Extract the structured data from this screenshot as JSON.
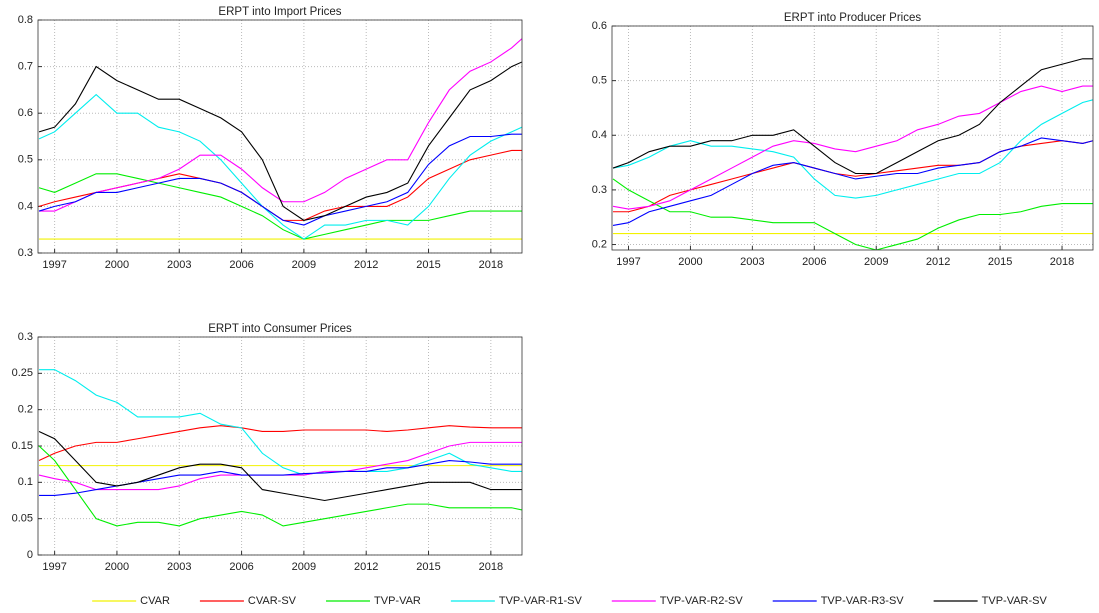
{
  "chart_data": [
    {
      "type": "line",
      "title": "ERPT into Import Prices",
      "xlim": [
        1996.2,
        2019.5
      ],
      "xticks": [
        1997,
        2000,
        2003,
        2006,
        2009,
        2012,
        2015,
        2018
      ],
      "ylim": [
        0.3,
        0.8
      ],
      "yticks": [
        0.3,
        0.4,
        0.5,
        0.6,
        0.7,
        0.8
      ],
      "grid": true,
      "x": [
        1996.25,
        1997,
        1998,
        1999,
        2000,
        2001,
        2002,
        2003,
        2004,
        2005,
        2006,
        2007,
        2008,
        2009,
        2010,
        2011,
        2012,
        2013,
        2014,
        2015,
        2016,
        2017,
        2018,
        2019,
        2019.5
      ],
      "series": [
        {
          "color": "#f2f200",
          "values": [
            0.33,
            0.33,
            0.33,
            0.33,
            0.33,
            0.33,
            0.33,
            0.33,
            0.33,
            0.33,
            0.33,
            0.33,
            0.33,
            0.33,
            0.33,
            0.33,
            0.33,
            0.33,
            0.33,
            0.33,
            0.33,
            0.33,
            0.33,
            0.33,
            0.33
          ]
        },
        {
          "color": "#ff0000",
          "values": [
            0.4,
            0.41,
            0.42,
            0.43,
            0.44,
            0.45,
            0.46,
            0.47,
            0.46,
            0.45,
            0.43,
            0.4,
            0.37,
            0.37,
            0.39,
            0.4,
            0.4,
            0.4,
            0.42,
            0.46,
            0.48,
            0.5,
            0.51,
            0.52,
            0.52
          ]
        },
        {
          "color": "#00ee00",
          "values": [
            0.44,
            0.43,
            0.45,
            0.47,
            0.47,
            0.46,
            0.45,
            0.44,
            0.43,
            0.42,
            0.4,
            0.38,
            0.35,
            0.33,
            0.34,
            0.35,
            0.36,
            0.37,
            0.37,
            0.37,
            0.38,
            0.39,
            0.39,
            0.39,
            0.39
          ]
        },
        {
          "color": "#00eeee",
          "values": [
            0.545,
            0.56,
            0.6,
            0.64,
            0.6,
            0.6,
            0.57,
            0.56,
            0.54,
            0.5,
            0.45,
            0.4,
            0.36,
            0.33,
            0.36,
            0.36,
            0.37,
            0.37,
            0.36,
            0.4,
            0.46,
            0.51,
            0.54,
            0.56,
            0.57
          ]
        },
        {
          "color": "#ff00ff",
          "values": [
            0.39,
            0.39,
            0.41,
            0.43,
            0.44,
            0.45,
            0.46,
            0.48,
            0.51,
            0.51,
            0.48,
            0.44,
            0.41,
            0.41,
            0.43,
            0.46,
            0.48,
            0.5,
            0.5,
            0.58,
            0.65,
            0.69,
            0.71,
            0.74,
            0.76
          ]
        },
        {
          "color": "#0000ff",
          "values": [
            0.39,
            0.4,
            0.41,
            0.43,
            0.43,
            0.44,
            0.45,
            0.46,
            0.46,
            0.45,
            0.43,
            0.4,
            0.37,
            0.36,
            0.38,
            0.39,
            0.4,
            0.41,
            0.43,
            0.49,
            0.53,
            0.55,
            0.55,
            0.555,
            0.555
          ]
        },
        {
          "color": "#000000",
          "values": [
            0.56,
            0.57,
            0.62,
            0.7,
            0.67,
            0.65,
            0.63,
            0.63,
            0.61,
            0.59,
            0.56,
            0.5,
            0.4,
            0.37,
            0.38,
            0.4,
            0.42,
            0.43,
            0.45,
            0.53,
            0.59,
            0.65,
            0.67,
            0.7,
            0.71
          ]
        }
      ]
    },
    {
      "type": "line",
      "title": "ERPT into Producer Prices",
      "xlim": [
        1996.2,
        2019.5
      ],
      "xticks": [
        1997,
        2000,
        2003,
        2006,
        2009,
        2012,
        2015,
        2018
      ],
      "ylim": [
        0.19,
        0.6
      ],
      "yticks": [
        0.2,
        0.3,
        0.4,
        0.5,
        0.6
      ],
      "grid": true,
      "x": [
        1996.25,
        1997,
        1998,
        1999,
        2000,
        2001,
        2002,
        2003,
        2004,
        2005,
        2006,
        2007,
        2008,
        2009,
        2010,
        2011,
        2012,
        2013,
        2014,
        2015,
        2016,
        2017,
        2018,
        2019,
        2019.5
      ],
      "series": [
        {
          "color": "#f2f200",
          "values": [
            0.22,
            0.22,
            0.22,
            0.22,
            0.22,
            0.22,
            0.22,
            0.22,
            0.22,
            0.22,
            0.22,
            0.22,
            0.22,
            0.22,
            0.22,
            0.22,
            0.22,
            0.22,
            0.22,
            0.22,
            0.22,
            0.22,
            0.22,
            0.22,
            0.22
          ]
        },
        {
          "color": "#ff0000",
          "values": [
            0.26,
            0.26,
            0.27,
            0.29,
            0.3,
            0.31,
            0.32,
            0.33,
            0.34,
            0.35,
            0.34,
            0.33,
            0.325,
            0.33,
            0.335,
            0.34,
            0.345,
            0.345,
            0.35,
            0.37,
            0.38,
            0.385,
            0.39,
            0.385,
            0.39
          ]
        },
        {
          "color": "#00ee00",
          "values": [
            0.32,
            0.3,
            0.28,
            0.26,
            0.26,
            0.25,
            0.25,
            0.245,
            0.24,
            0.24,
            0.24,
            0.22,
            0.2,
            0.19,
            0.2,
            0.21,
            0.23,
            0.245,
            0.255,
            0.255,
            0.26,
            0.27,
            0.275,
            0.275,
            0.275
          ]
        },
        {
          "color": "#00eeee",
          "values": [
            0.34,
            0.345,
            0.36,
            0.38,
            0.39,
            0.38,
            0.38,
            0.375,
            0.37,
            0.36,
            0.32,
            0.29,
            0.285,
            0.29,
            0.3,
            0.31,
            0.32,
            0.33,
            0.33,
            0.35,
            0.39,
            0.42,
            0.44,
            0.46,
            0.465
          ]
        },
        {
          "color": "#ff00ff",
          "values": [
            0.27,
            0.265,
            0.27,
            0.28,
            0.3,
            0.32,
            0.34,
            0.36,
            0.38,
            0.39,
            0.385,
            0.375,
            0.37,
            0.38,
            0.39,
            0.41,
            0.42,
            0.435,
            0.44,
            0.46,
            0.48,
            0.49,
            0.48,
            0.49,
            0.49
          ]
        },
        {
          "color": "#0000ff",
          "values": [
            0.235,
            0.24,
            0.26,
            0.27,
            0.28,
            0.29,
            0.31,
            0.33,
            0.345,
            0.35,
            0.34,
            0.33,
            0.32,
            0.325,
            0.33,
            0.33,
            0.34,
            0.345,
            0.35,
            0.37,
            0.38,
            0.395,
            0.39,
            0.385,
            0.39
          ]
        },
        {
          "color": "#000000",
          "values": [
            0.34,
            0.35,
            0.37,
            0.38,
            0.38,
            0.39,
            0.39,
            0.4,
            0.4,
            0.41,
            0.38,
            0.35,
            0.33,
            0.33,
            0.35,
            0.37,
            0.39,
            0.4,
            0.42,
            0.46,
            0.49,
            0.52,
            0.53,
            0.54,
            0.54
          ]
        }
      ]
    },
    {
      "type": "line",
      "title": "ERPT into Consumer Prices",
      "xlim": [
        1996.2,
        2019.5
      ],
      "xticks": [
        1997,
        2000,
        2003,
        2006,
        2009,
        2012,
        2015,
        2018
      ],
      "ylim": [
        0,
        0.3
      ],
      "yticks": [
        0,
        0.05,
        0.1,
        0.15,
        0.2,
        0.25,
        0.3
      ],
      "grid": true,
      "x": [
        1996.25,
        1997,
        1998,
        1999,
        2000,
        2001,
        2002,
        2003,
        2004,
        2005,
        2006,
        2007,
        2008,
        2009,
        2010,
        2011,
        2012,
        2013,
        2014,
        2015,
        2016,
        2017,
        2018,
        2019,
        2019.5
      ],
      "series": [
        {
          "name": "CVAR",
          "color": "#f2f200",
          "values": [
            0.123,
            0.123,
            0.123,
            0.123,
            0.123,
            0.123,
            0.123,
            0.123,
            0.123,
            0.123,
            0.123,
            0.123,
            0.123,
            0.123,
            0.123,
            0.123,
            0.123,
            0.123,
            0.123,
            0.123,
            0.123,
            0.123,
            0.123,
            0.123,
            0.123
          ]
        },
        {
          "name": "CVAR-SV",
          "color": "#ff0000",
          "values": [
            0.13,
            0.14,
            0.15,
            0.155,
            0.155,
            0.16,
            0.165,
            0.17,
            0.175,
            0.178,
            0.175,
            0.17,
            0.17,
            0.172,
            0.172,
            0.172,
            0.172,
            0.17,
            0.172,
            0.175,
            0.178,
            0.176,
            0.175,
            0.175,
            0.175
          ]
        },
        {
          "name": "TVP-VAR",
          "color": "#00ee00",
          "values": [
            0.15,
            0.13,
            0.09,
            0.05,
            0.04,
            0.045,
            0.045,
            0.04,
            0.05,
            0.055,
            0.06,
            0.055,
            0.04,
            0.045,
            0.05,
            0.055,
            0.06,
            0.065,
            0.07,
            0.07,
            0.065,
            0.065,
            0.065,
            0.065,
            0.062
          ]
        },
        {
          "name": "TVP-VAR-R1-SV",
          "color": "#00eeee",
          "values": [
            0.255,
            0.255,
            0.24,
            0.22,
            0.21,
            0.19,
            0.19,
            0.19,
            0.195,
            0.18,
            0.175,
            0.14,
            0.12,
            0.11,
            0.115,
            0.115,
            0.115,
            0.115,
            0.12,
            0.13,
            0.14,
            0.125,
            0.12,
            0.115,
            0.115
          ]
        },
        {
          "name": "TVP-VAR-R2-SV",
          "color": "#ff00ff",
          "values": [
            0.11,
            0.105,
            0.1,
            0.09,
            0.09,
            0.09,
            0.09,
            0.095,
            0.105,
            0.11,
            0.11,
            0.11,
            0.11,
            0.11,
            0.115,
            0.115,
            0.12,
            0.125,
            0.13,
            0.14,
            0.15,
            0.155,
            0.155,
            0.155,
            0.155
          ]
        },
        {
          "name": "TVP-VAR-R3-SV",
          "color": "#0000ff",
          "values": [
            0.082,
            0.082,
            0.085,
            0.09,
            0.095,
            0.1,
            0.105,
            0.11,
            0.11,
            0.115,
            0.11,
            0.11,
            0.11,
            0.112,
            0.113,
            0.115,
            0.115,
            0.12,
            0.12,
            0.125,
            0.13,
            0.128,
            0.125,
            0.125,
            0.125
          ]
        },
        {
          "name": "TVP-VAR-SV",
          "color": "#000000",
          "values": [
            0.17,
            0.16,
            0.13,
            0.1,
            0.095,
            0.1,
            0.11,
            0.12,
            0.125,
            0.125,
            0.12,
            0.09,
            0.085,
            0.08,
            0.075,
            0.08,
            0.085,
            0.09,
            0.095,
            0.1,
            0.1,
            0.1,
            0.09,
            0.09,
            0.09
          ]
        }
      ]
    }
  ]
}
